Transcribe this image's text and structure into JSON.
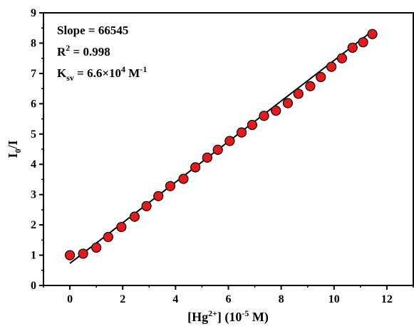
{
  "chart_data": {
    "type": "scatter",
    "xlabel": "[Hg2+] (10-5 M)",
    "ylabel": "I0/I",
    "xlim": [
      -1,
      13
    ],
    "ylim": [
      0,
      9
    ],
    "x_ticks": [
      "0",
      "2",
      "4",
      "6",
      "8",
      "10",
      "12"
    ],
    "y_ticks": [
      "0",
      "1",
      "2",
      "3",
      "4",
      "5",
      "6",
      "7",
      "8",
      "9"
    ],
    "annotations": {
      "slope": "Slope = 66545",
      "r2": "R2 = 0.998",
      "ksv": "Ksv = 6.6×104 M-1"
    },
    "series": [
      {
        "marker_color": "#e41a1c",
        "x": [
          0,
          0.5,
          1.0,
          1.45,
          1.95,
          2.45,
          2.9,
          3.35,
          3.8,
          4.3,
          4.75,
          5.2,
          5.6,
          6.05,
          6.5,
          6.9,
          7.35,
          7.8,
          8.25,
          8.65,
          9.1,
          9.5,
          9.9,
          10.3,
          10.7,
          11.1,
          11.45
        ],
        "y": [
          1.0,
          1.05,
          1.25,
          1.6,
          1.93,
          2.27,
          2.62,
          2.95,
          3.28,
          3.52,
          3.9,
          4.22,
          4.48,
          4.77,
          5.05,
          5.3,
          5.6,
          5.77,
          6.02,
          6.33,
          6.58,
          6.88,
          7.22,
          7.5,
          7.85,
          8.03,
          8.3
        ]
      }
    ],
    "fit_line": {
      "x": [
        0,
        11.3
      ],
      "y": [
        0.73,
        8.3
      ],
      "color": "#000000"
    }
  }
}
